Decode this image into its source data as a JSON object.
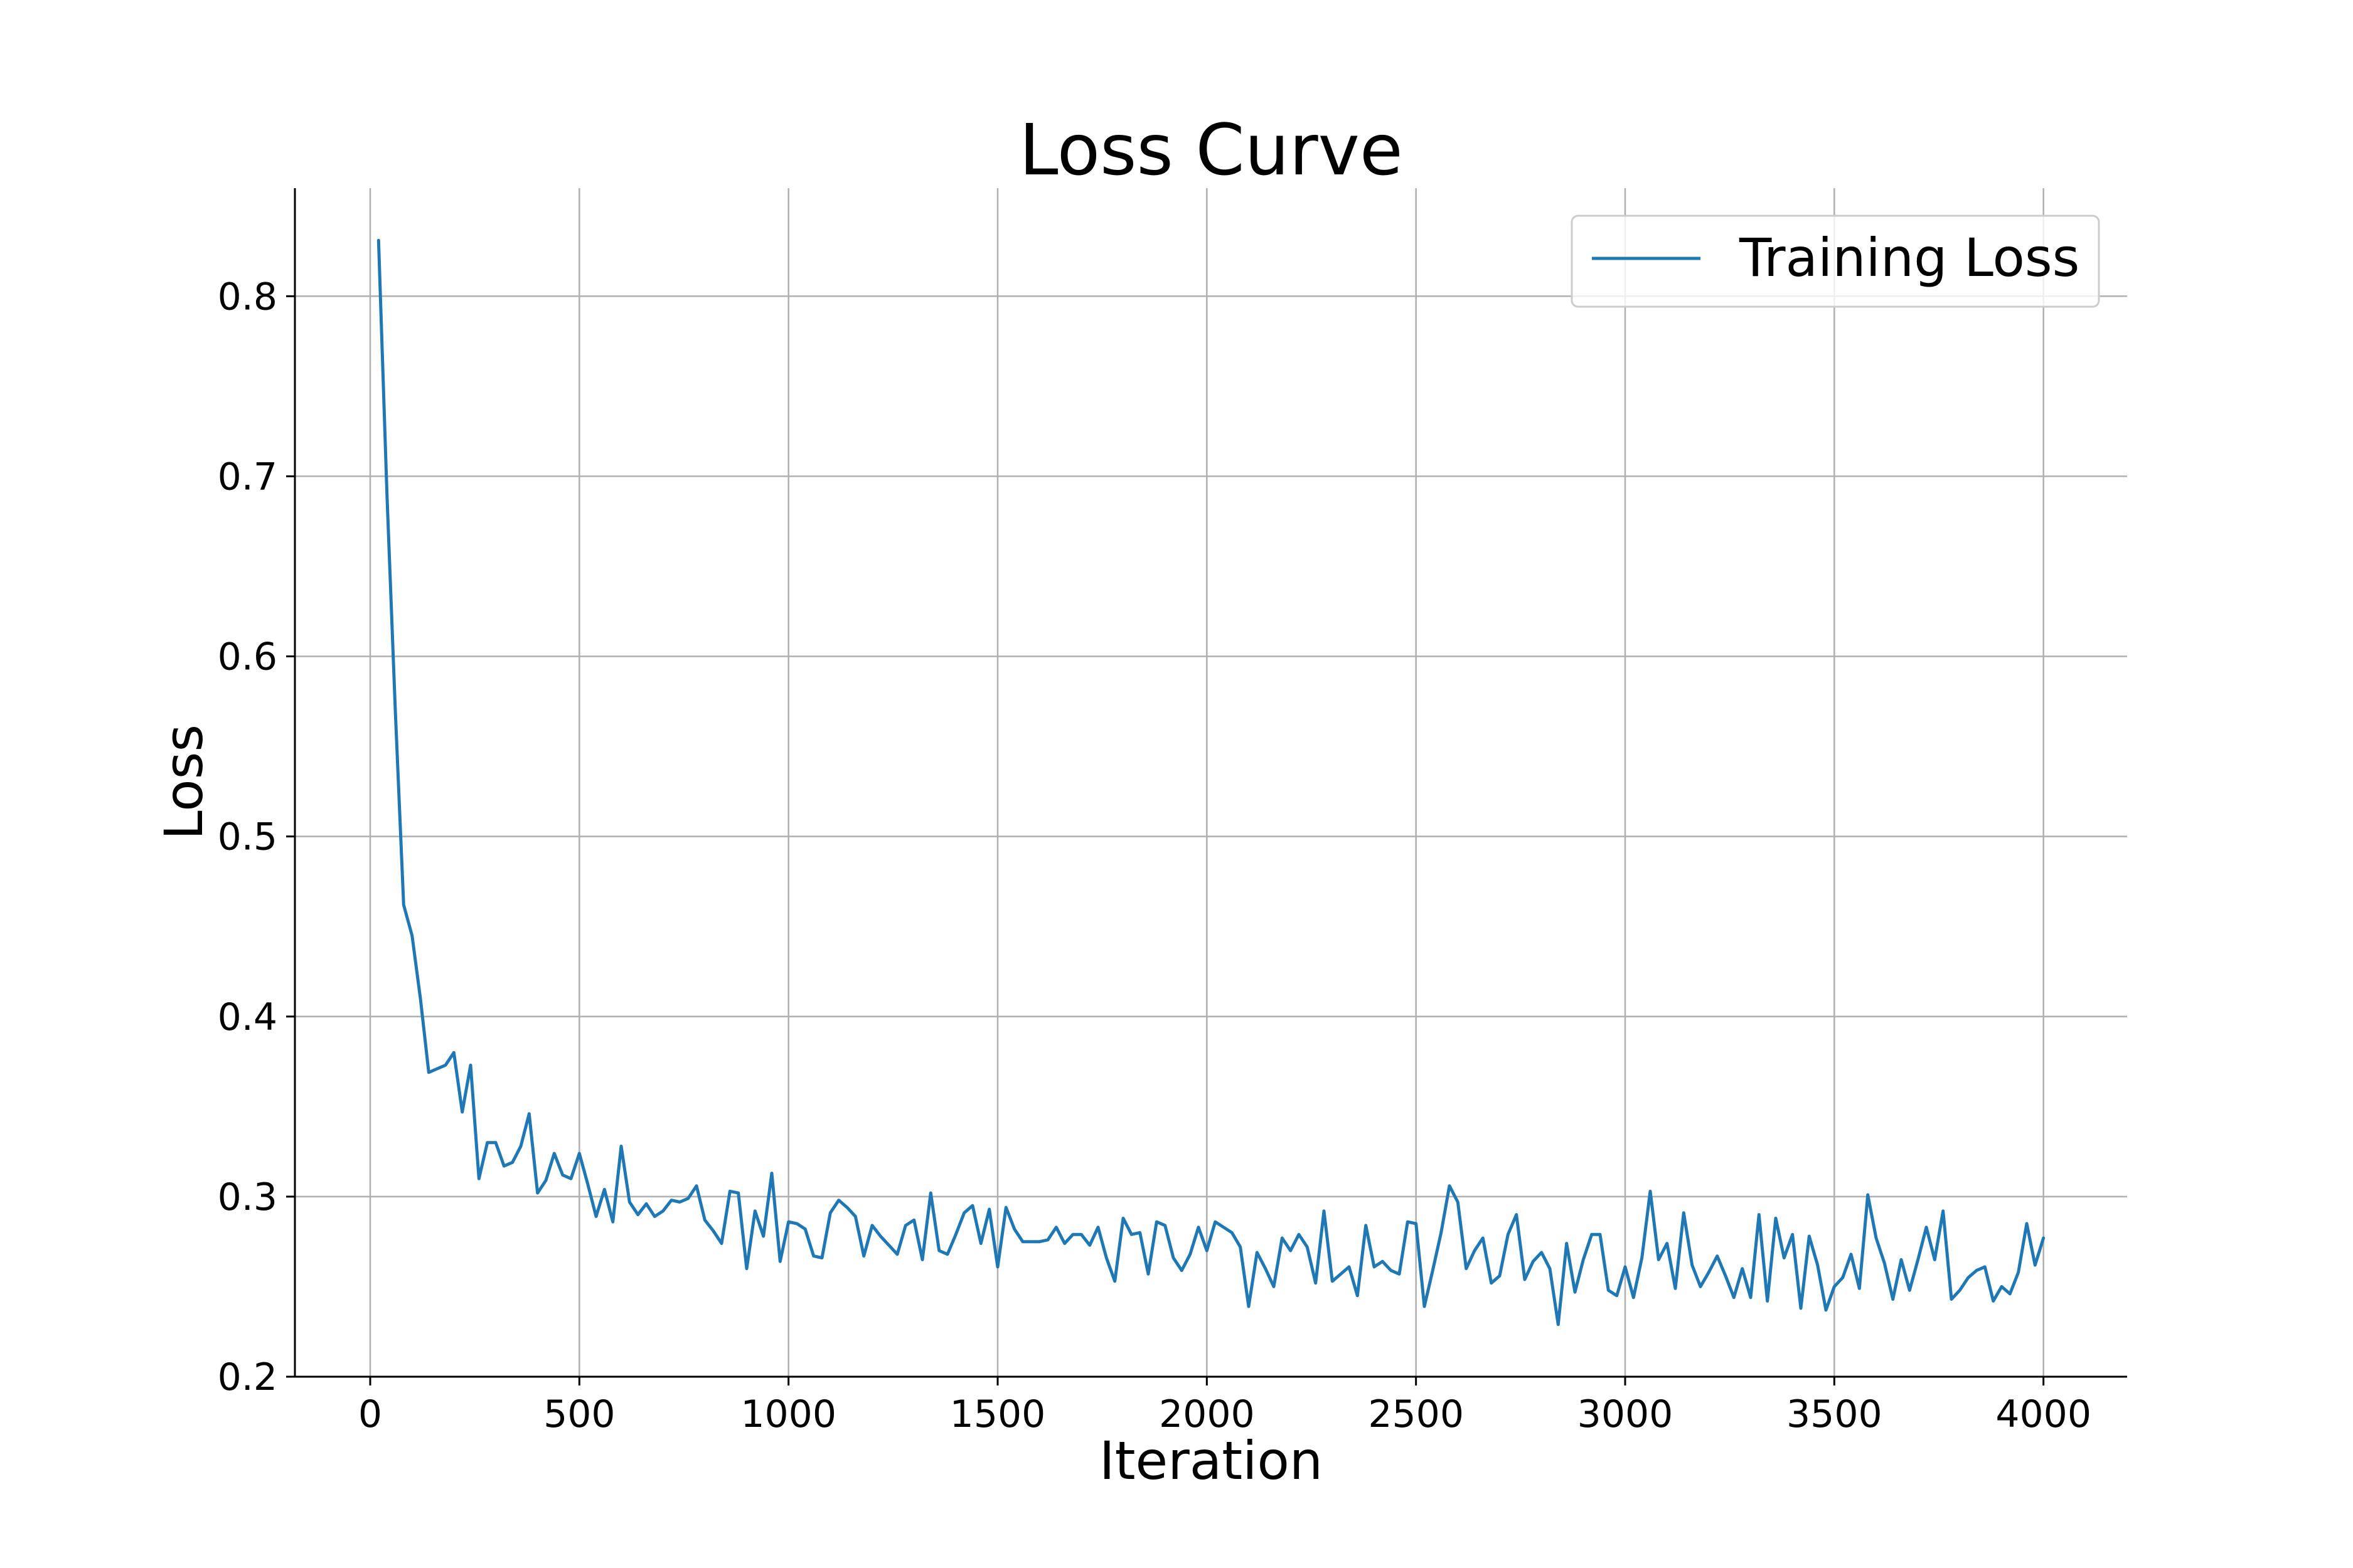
{
  "chart_data": {
    "type": "line",
    "title": "Loss Curve",
    "xlabel": "Iteration",
    "ylabel": "Loss",
    "xlim": [
      -180,
      4200
    ],
    "ylim": [
      0.2,
      0.86
    ],
    "xticks": [
      0,
      500,
      1000,
      1500,
      2000,
      2500,
      3000,
      3500,
      4000
    ],
    "yticks": [
      0.2,
      0.3,
      0.4,
      0.5,
      0.6,
      0.7,
      0.8
    ],
    "grid": true,
    "legend": {
      "position": "upper right",
      "entries": [
        "Training Loss"
      ]
    },
    "series": [
      {
        "name": "Training Loss",
        "color": "#1f77b4",
        "x": [
          20,
          40,
          60,
          80,
          100,
          120,
          140,
          160,
          180,
          200,
          220,
          240,
          260,
          280,
          300,
          320,
          340,
          360,
          380,
          400,
          420,
          440,
          460,
          480,
          500,
          520,
          540,
          560,
          580,
          600,
          620,
          640,
          660,
          680,
          700,
          720,
          740,
          760,
          780,
          800,
          820,
          840,
          860,
          880,
          900,
          920,
          940,
          960,
          980,
          1000,
          1020,
          1040,
          1060,
          1080,
          1100,
          1120,
          1140,
          1160,
          1180,
          1200,
          1220,
          1240,
          1260,
          1280,
          1300,
          1320,
          1340,
          1360,
          1380,
          1400,
          1420,
          1440,
          1460,
          1480,
          1500,
          1520,
          1540,
          1560,
          1580,
          1600,
          1620,
          1640,
          1660,
          1680,
          1700,
          1720,
          1740,
          1760,
          1780,
          1800,
          1820,
          1840,
          1860,
          1880,
          1900,
          1920,
          1940,
          1960,
          1980,
          2000,
          2020,
          2040,
          2060,
          2080,
          2100,
          2120,
          2140,
          2160,
          2180,
          2200,
          2220,
          2240,
          2260,
          2280,
          2300,
          2320,
          2340,
          2360,
          2380,
          2400,
          2420,
          2440,
          2460,
          2480,
          2500,
          2520,
          2540,
          2560,
          2580,
          2600,
          2620,
          2640,
          2660,
          2680,
          2700,
          2720,
          2740,
          2760,
          2780,
          2800,
          2820,
          2840,
          2860,
          2880,
          2900,
          2920,
          2940,
          2960,
          2980,
          3000,
          3020,
          3040,
          3060,
          3080,
          3100,
          3120,
          3140,
          3160,
          3180,
          3200,
          3220,
          3240,
          3260,
          3280,
          3300,
          3320,
          3340,
          3360,
          3380,
          3400,
          3420,
          3440,
          3460,
          3480,
          3500,
          3520,
          3540,
          3560,
          3580,
          3600,
          3620,
          3640,
          3660,
          3680,
          3700,
          3720,
          3740,
          3760,
          3780,
          3800,
          3820,
          3840,
          3860,
          3880,
          3900,
          3920,
          3940,
          3960,
          3980,
          4000
        ],
        "values": [
          0.831,
          0.69,
          0.57,
          0.462,
          0.445,
          0.41,
          0.369,
          0.371,
          0.373,
          0.38,
          0.347,
          0.373,
          0.31,
          0.33,
          0.33,
          0.317,
          0.319,
          0.328,
          0.346,
          0.302,
          0.309,
          0.324,
          0.312,
          0.31,
          0.324,
          0.307,
          0.289,
          0.304,
          0.286,
          0.328,
          0.297,
          0.29,
          0.296,
          0.289,
          0.292,
          0.298,
          0.297,
          0.299,
          0.306,
          0.287,
          0.281,
          0.274,
          0.303,
          0.302,
          0.26,
          0.292,
          0.278,
          0.313,
          0.264,
          0.286,
          0.285,
          0.282,
          0.267,
          0.266,
          0.291,
          0.298,
          0.294,
          0.289,
          0.267,
          0.284,
          0.278,
          0.273,
          0.268,
          0.284,
          0.287,
          0.265,
          0.302,
          0.27,
          0.268,
          0.279,
          0.291,
          0.295,
          0.274,
          0.293,
          0.261,
          0.294,
          0.282,
          0.275,
          0.275,
          0.275,
          0.276,
          0.283,
          0.274,
          0.279,
          0.279,
          0.273,
          0.283,
          0.266,
          0.253,
          0.288,
          0.279,
          0.28,
          0.257,
          0.286,
          0.284,
          0.266,
          0.259,
          0.268,
          0.283,
          0.27,
          0.286,
          0.283,
          0.28,
          0.272,
          0.239,
          0.269,
          0.26,
          0.25,
          0.277,
          0.27,
          0.279,
          0.272,
          0.252,
          0.292,
          0.253,
          0.257,
          0.261,
          0.245,
          0.284,
          0.261,
          0.264,
          0.259,
          0.257,
          0.286,
          0.285,
          0.239,
          0.259,
          0.28,
          0.306,
          0.297,
          0.26,
          0.27,
          0.277,
          0.252,
          0.256,
          0.279,
          0.29,
          0.254,
          0.264,
          0.269,
          0.26,
          0.229,
          0.274,
          0.247,
          0.265,
          0.279,
          0.279,
          0.248,
          0.245,
          0.261,
          0.244,
          0.266,
          0.303,
          0.265,
          0.274,
          0.249,
          0.291,
          0.262,
          0.25,
          0.258,
          0.267,
          0.256,
          0.244,
          0.26,
          0.244,
          0.29,
          0.242,
          0.288,
          0.266,
          0.279,
          0.238,
          0.278,
          0.262,
          0.237,
          0.25,
          0.255,
          0.268,
          0.249,
          0.301,
          0.277,
          0.263,
          0.243,
          0.265,
          0.248,
          0.265,
          0.283,
          0.265,
          0.292,
          0.243,
          0.248,
          0.255,
          0.259,
          0.261,
          0.242,
          0.25,
          0.246,
          0.258,
          0.285,
          0.262,
          0.277
        ]
      }
    ]
  }
}
